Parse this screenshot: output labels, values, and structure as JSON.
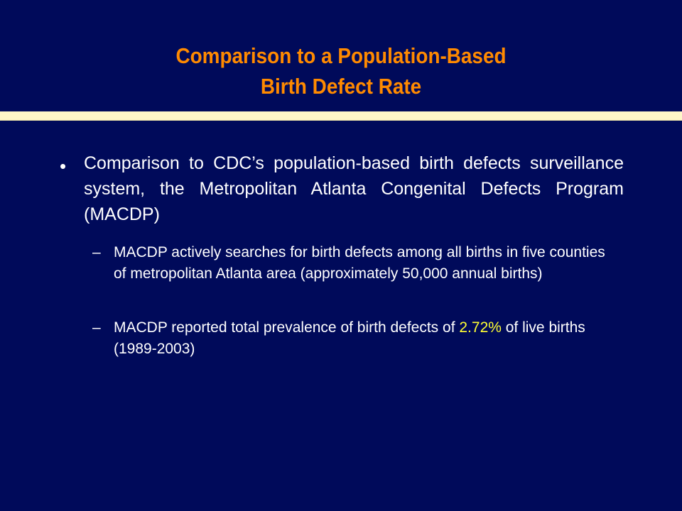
{
  "slide": {
    "title_line1": "Comparison to a Population-Based",
    "title_line2": "Birth Defect Rate",
    "bullet": {
      "mark": "•",
      "text": "Comparison to CDC’s population-based birth defects surveillance system, the Metropolitan Atlanta Congenital Defects Program (MACDP)"
    },
    "subbullets": [
      {
        "mark": "–",
        "text": "MACDP actively searches for birth defects among all births in five counties of metropolitan Atlanta area (approximately 50,000 annual births)"
      },
      {
        "mark": "–",
        "text_before": "MACDP reported total prevalence of birth defects of ",
        "highlight": "2.72%",
        "text_after": " of live births (1989-2003)"
      }
    ],
    "colors": {
      "background": "#000a5a",
      "title": "#ff8a00",
      "rule": "#fff6c8",
      "body_text": "#ffffff",
      "highlight": "#ffff33"
    }
  }
}
